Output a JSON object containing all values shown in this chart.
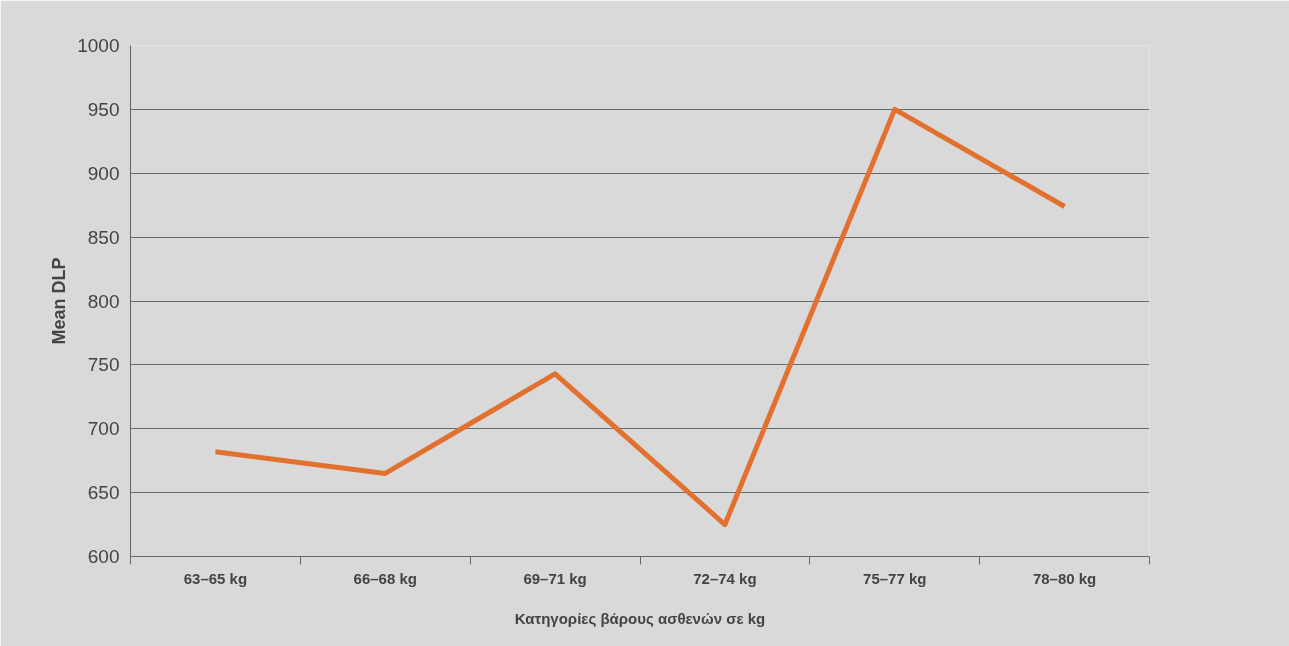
{
  "chart_data": {
    "type": "line",
    "xlabel": "Κατηγορίες βάρους ασθενών σε kg",
    "ylabel": "Mean DLP",
    "categories": [
      "63–65 kg",
      "66–68 kg",
      "69–71 kg",
      "72–74 kg",
      "75–77 kg",
      "78–80 kg"
    ],
    "series": [
      {
        "color": "#e2702f",
        "values": [
          682,
          665,
          743,
          625,
          950,
          874
        ]
      }
    ],
    "ylim": [
      600,
      1000
    ],
    "yticks": [
      600,
      650,
      700,
      750,
      800,
      850,
      900,
      950,
      1000
    ],
    "grid": "y",
    "marker": "none",
    "line_style": "solid"
  }
}
